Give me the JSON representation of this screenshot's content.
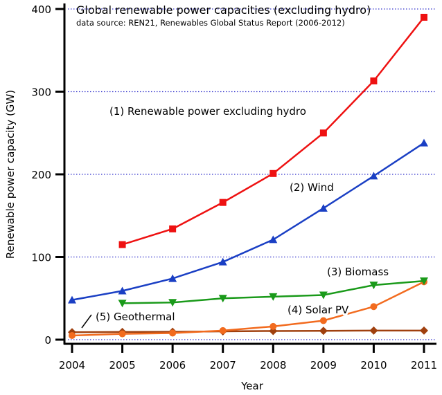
{
  "chart_data": {
    "type": "line",
    "title": "Global renewable power capacities (excluding hydro)",
    "subtitle": "data source: REN21, Renewables Global Status Report (2006-2012)",
    "xlabel": "Year",
    "ylabel": "Renewable power capacity (GW)",
    "xlim": [
      2004,
      2011
    ],
    "ylim": [
      0,
      400
    ],
    "x_ticks": [
      "2004",
      "2005",
      "2006",
      "2007",
      "2008",
      "2009",
      "2010",
      "2011"
    ],
    "y_ticks": [
      "0",
      "100",
      "200",
      "300",
      "400"
    ],
    "grid": "horizontal dotted",
    "gridColor": "#3333cc",
    "series": [
      {
        "name": "(1) Renewable power excluding hydro",
        "color": "#ee1111",
        "marker": "square",
        "x": [
          2005,
          2006,
          2007,
          2008,
          2009,
          2010,
          2011
        ],
        "values": [
          115,
          134,
          166,
          201,
          250,
          313,
          390
        ]
      },
      {
        "name": "(2) Wind",
        "color": "#1a3fc4",
        "marker": "triangle-up",
        "x": [
          2004,
          2005,
          2006,
          2007,
          2008,
          2009,
          2010,
          2011
        ],
        "values": [
          48,
          59,
          74,
          94,
          121,
          159,
          198,
          238
        ]
      },
      {
        "name": "(3) Biomass",
        "color": "#1a9a1a",
        "marker": "triangle-down",
        "x": [
          2005,
          2006,
          2007,
          2008,
          2009,
          2010,
          2011
        ],
        "values": [
          44,
          45,
          50,
          52,
          54,
          66,
          71
        ]
      },
      {
        "name": "(4) Solar PV",
        "color": "#f26b1f",
        "marker": "circle",
        "x": [
          2004,
          2005,
          2006,
          2007,
          2008,
          2009,
          2010,
          2011
        ],
        "values": [
          5,
          7,
          8,
          11,
          16,
          23,
          40,
          70
        ]
      },
      {
        "name": "(5) Geothermal",
        "color": "#a0400f",
        "marker": "diamond",
        "x": [
          2004,
          2005,
          2006,
          2007,
          2008,
          2009,
          2010,
          2011
        ],
        "values": [
          9,
          9.3,
          9.5,
          10,
          10.5,
          10.7,
          11,
          11
        ]
      }
    ]
  }
}
